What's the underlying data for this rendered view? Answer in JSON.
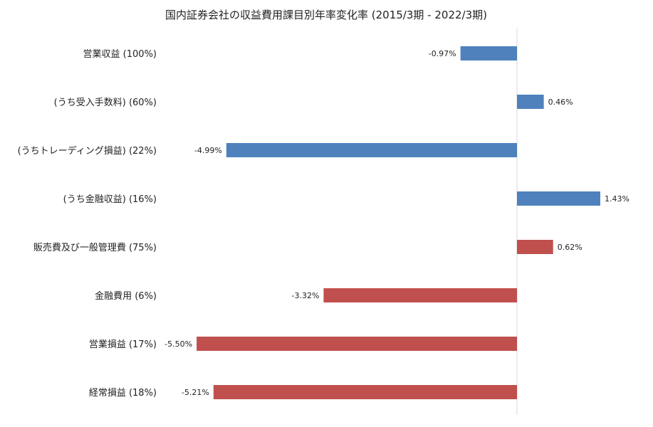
{
  "chart_data": {
    "type": "bar",
    "orientation": "horizontal",
    "title": "国内証券会社の収益費用課目別年率変化率 (2015/3期 - 2022/3期)",
    "xlabel": "",
    "ylabel": "",
    "grid": false,
    "legend": "none",
    "xlim": [
      -5.5,
      2.5
    ],
    "categories": [
      "営業収益 (100%)",
      "(うち受入手数料) (60%)",
      "(うちトレーディング損益) (22%)",
      "(うち金融収益) (16%)",
      "販売費及び一般管理費 (75%)",
      "金融費用 (6%)",
      "営業損益 (17%)",
      "経常損益 (18%)"
    ],
    "values": [
      -0.97,
      0.46,
      -4.99,
      1.43,
      0.62,
      -3.32,
      -5.5,
      -5.21
    ],
    "data_labels": [
      "-0.97%",
      "0.46%",
      "-4.99%",
      "1.43%",
      "0.62%",
      "-3.32%",
      "-5.50%",
      "-5.21%"
    ],
    "bar_colors": [
      "#4f81bd",
      "#4f81bd",
      "#4f81bd",
      "#4f81bd",
      "#c0504d",
      "#c0504d",
      "#c0504d",
      "#c0504d"
    ],
    "axis_color": "#d9d9d9"
  }
}
